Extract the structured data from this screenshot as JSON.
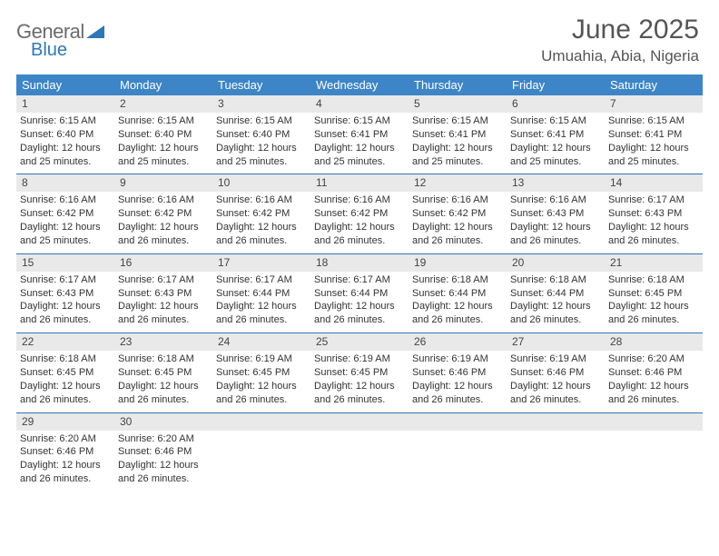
{
  "logo": {
    "line1": "General",
    "line2": "Blue"
  },
  "title": "June 2025",
  "location": "Umuahia, Abia, Nigeria",
  "colors": {
    "header_bg": "#3d85c6",
    "divider": "#2f77b8",
    "daynum_bg": "#e9e9e9",
    "logo_gray": "#6b6b6b",
    "logo_blue": "#2f77b8",
    "title_color": "#555555",
    "text": "#333333",
    "page_bg": "#ffffff"
  },
  "weekdays": [
    "Sunday",
    "Monday",
    "Tuesday",
    "Wednesday",
    "Thursday",
    "Friday",
    "Saturday"
  ],
  "weeks": [
    [
      {
        "num": "1",
        "sunrise": "Sunrise: 6:15 AM",
        "sunset": "Sunset: 6:40 PM",
        "day1": "Daylight: 12 hours",
        "day2": "and 25 minutes."
      },
      {
        "num": "2",
        "sunrise": "Sunrise: 6:15 AM",
        "sunset": "Sunset: 6:40 PM",
        "day1": "Daylight: 12 hours",
        "day2": "and 25 minutes."
      },
      {
        "num": "3",
        "sunrise": "Sunrise: 6:15 AM",
        "sunset": "Sunset: 6:40 PM",
        "day1": "Daylight: 12 hours",
        "day2": "and 25 minutes."
      },
      {
        "num": "4",
        "sunrise": "Sunrise: 6:15 AM",
        "sunset": "Sunset: 6:41 PM",
        "day1": "Daylight: 12 hours",
        "day2": "and 25 minutes."
      },
      {
        "num": "5",
        "sunrise": "Sunrise: 6:15 AM",
        "sunset": "Sunset: 6:41 PM",
        "day1": "Daylight: 12 hours",
        "day2": "and 25 minutes."
      },
      {
        "num": "6",
        "sunrise": "Sunrise: 6:15 AM",
        "sunset": "Sunset: 6:41 PM",
        "day1": "Daylight: 12 hours",
        "day2": "and 25 minutes."
      },
      {
        "num": "7",
        "sunrise": "Sunrise: 6:15 AM",
        "sunset": "Sunset: 6:41 PM",
        "day1": "Daylight: 12 hours",
        "day2": "and 25 minutes."
      }
    ],
    [
      {
        "num": "8",
        "sunrise": "Sunrise: 6:16 AM",
        "sunset": "Sunset: 6:42 PM",
        "day1": "Daylight: 12 hours",
        "day2": "and 25 minutes."
      },
      {
        "num": "9",
        "sunrise": "Sunrise: 6:16 AM",
        "sunset": "Sunset: 6:42 PM",
        "day1": "Daylight: 12 hours",
        "day2": "and 26 minutes."
      },
      {
        "num": "10",
        "sunrise": "Sunrise: 6:16 AM",
        "sunset": "Sunset: 6:42 PM",
        "day1": "Daylight: 12 hours",
        "day2": "and 26 minutes."
      },
      {
        "num": "11",
        "sunrise": "Sunrise: 6:16 AM",
        "sunset": "Sunset: 6:42 PM",
        "day1": "Daylight: 12 hours",
        "day2": "and 26 minutes."
      },
      {
        "num": "12",
        "sunrise": "Sunrise: 6:16 AM",
        "sunset": "Sunset: 6:42 PM",
        "day1": "Daylight: 12 hours",
        "day2": "and 26 minutes."
      },
      {
        "num": "13",
        "sunrise": "Sunrise: 6:16 AM",
        "sunset": "Sunset: 6:43 PM",
        "day1": "Daylight: 12 hours",
        "day2": "and 26 minutes."
      },
      {
        "num": "14",
        "sunrise": "Sunrise: 6:17 AM",
        "sunset": "Sunset: 6:43 PM",
        "day1": "Daylight: 12 hours",
        "day2": "and 26 minutes."
      }
    ],
    [
      {
        "num": "15",
        "sunrise": "Sunrise: 6:17 AM",
        "sunset": "Sunset: 6:43 PM",
        "day1": "Daylight: 12 hours",
        "day2": "and 26 minutes."
      },
      {
        "num": "16",
        "sunrise": "Sunrise: 6:17 AM",
        "sunset": "Sunset: 6:43 PM",
        "day1": "Daylight: 12 hours",
        "day2": "and 26 minutes."
      },
      {
        "num": "17",
        "sunrise": "Sunrise: 6:17 AM",
        "sunset": "Sunset: 6:44 PM",
        "day1": "Daylight: 12 hours",
        "day2": "and 26 minutes."
      },
      {
        "num": "18",
        "sunrise": "Sunrise: 6:17 AM",
        "sunset": "Sunset: 6:44 PM",
        "day1": "Daylight: 12 hours",
        "day2": "and 26 minutes."
      },
      {
        "num": "19",
        "sunrise": "Sunrise: 6:18 AM",
        "sunset": "Sunset: 6:44 PM",
        "day1": "Daylight: 12 hours",
        "day2": "and 26 minutes."
      },
      {
        "num": "20",
        "sunrise": "Sunrise: 6:18 AM",
        "sunset": "Sunset: 6:44 PM",
        "day1": "Daylight: 12 hours",
        "day2": "and 26 minutes."
      },
      {
        "num": "21",
        "sunrise": "Sunrise: 6:18 AM",
        "sunset": "Sunset: 6:45 PM",
        "day1": "Daylight: 12 hours",
        "day2": "and 26 minutes."
      }
    ],
    [
      {
        "num": "22",
        "sunrise": "Sunrise: 6:18 AM",
        "sunset": "Sunset: 6:45 PM",
        "day1": "Daylight: 12 hours",
        "day2": "and 26 minutes."
      },
      {
        "num": "23",
        "sunrise": "Sunrise: 6:18 AM",
        "sunset": "Sunset: 6:45 PM",
        "day1": "Daylight: 12 hours",
        "day2": "and 26 minutes."
      },
      {
        "num": "24",
        "sunrise": "Sunrise: 6:19 AM",
        "sunset": "Sunset: 6:45 PM",
        "day1": "Daylight: 12 hours",
        "day2": "and 26 minutes."
      },
      {
        "num": "25",
        "sunrise": "Sunrise: 6:19 AM",
        "sunset": "Sunset: 6:45 PM",
        "day1": "Daylight: 12 hours",
        "day2": "and 26 minutes."
      },
      {
        "num": "26",
        "sunrise": "Sunrise: 6:19 AM",
        "sunset": "Sunset: 6:46 PM",
        "day1": "Daylight: 12 hours",
        "day2": "and 26 minutes."
      },
      {
        "num": "27",
        "sunrise": "Sunrise: 6:19 AM",
        "sunset": "Sunset: 6:46 PM",
        "day1": "Daylight: 12 hours",
        "day2": "and 26 minutes."
      },
      {
        "num": "28",
        "sunrise": "Sunrise: 6:20 AM",
        "sunset": "Sunset: 6:46 PM",
        "day1": "Daylight: 12 hours",
        "day2": "and 26 minutes."
      }
    ],
    [
      {
        "num": "29",
        "sunrise": "Sunrise: 6:20 AM",
        "sunset": "Sunset: 6:46 PM",
        "day1": "Daylight: 12 hours",
        "day2": "and 26 minutes."
      },
      {
        "num": "30",
        "sunrise": "Sunrise: 6:20 AM",
        "sunset": "Sunset: 6:46 PM",
        "day1": "Daylight: 12 hours",
        "day2": "and 26 minutes."
      },
      null,
      null,
      null,
      null,
      null
    ]
  ]
}
